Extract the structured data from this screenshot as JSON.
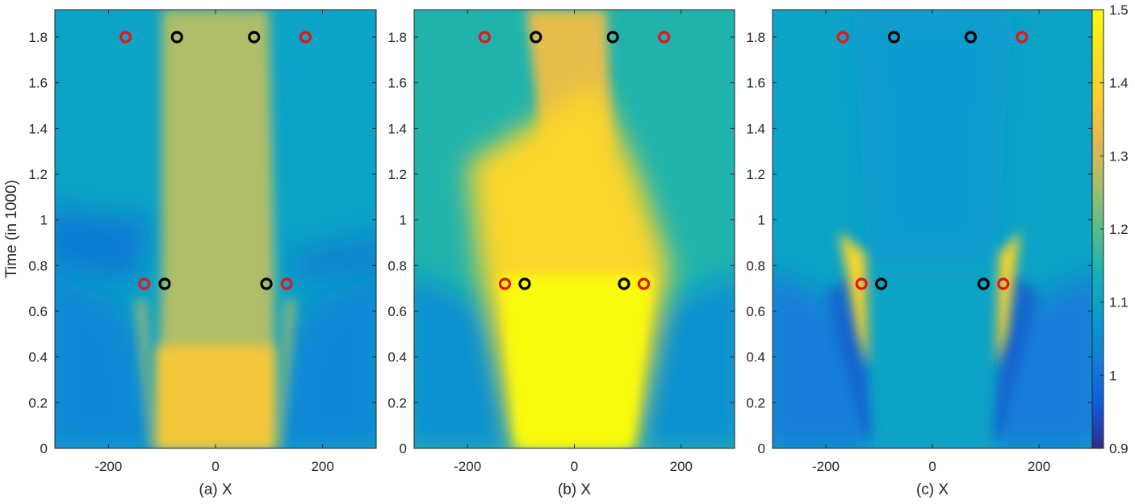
{
  "chart_data": [
    {
      "type": "heatmap",
      "panel": "a",
      "xlabel": "(a) X",
      "ylabel": "Time (in 1000)",
      "xlim": [
        -300,
        300
      ],
      "ylim": [
        0,
        1.92
      ],
      "x_ticks": [
        -200,
        0,
        200
      ],
      "y_ticks": [
        0,
        0.2,
        0.4,
        0.6,
        0.8,
        1,
        1.2,
        1.4,
        1.6,
        1.8
      ],
      "field": {
        "background": 1.1,
        "wave_outer_value": 1.04,
        "wave_left_value": 1.04,
        "band_upper_value": 1.27,
        "band_lower_value": 1.36,
        "streak_value": 1.28,
        "dark_lobe_value": 0.97
      },
      "markers": [
        {
          "x": -168,
          "y": 1.8,
          "color": "red"
        },
        {
          "x": -72,
          "y": 1.8,
          "color": "black"
        },
        {
          "x": 72,
          "y": 1.8,
          "color": "black"
        },
        {
          "x": 168,
          "y": 1.8,
          "color": "red"
        },
        {
          "x": -133,
          "y": 0.72,
          "color": "red"
        },
        {
          "x": -95,
          "y": 0.72,
          "color": "black"
        },
        {
          "x": 95,
          "y": 0.72,
          "color": "black"
        },
        {
          "x": 133,
          "y": 0.72,
          "color": "red"
        }
      ]
    },
    {
      "type": "heatmap",
      "panel": "b",
      "xlabel": "(b) X",
      "ylabel": "",
      "xlim": [
        -300,
        300
      ],
      "ylim": [
        0,
        1.92
      ],
      "x_ticks": [
        -200,
        0,
        200
      ],
      "y_ticks": [
        0,
        0.2,
        0.4,
        0.6,
        0.8,
        1,
        1.2,
        1.4,
        1.6,
        1.8
      ],
      "field": {
        "background": 1.15,
        "wave_outer_value": 1.06,
        "band_upper_value": 1.33,
        "band_lower_value": 1.5,
        "plume_value": 1.4
      },
      "markers": [
        {
          "x": -168,
          "y": 1.8,
          "color": "red"
        },
        {
          "x": -72,
          "y": 1.8,
          "color": "black"
        },
        {
          "x": 72,
          "y": 1.8,
          "color": "black"
        },
        {
          "x": 168,
          "y": 1.8,
          "color": "red"
        },
        {
          "x": -130,
          "y": 0.72,
          "color": "red"
        },
        {
          "x": -93,
          "y": 0.72,
          "color": "black"
        },
        {
          "x": 93,
          "y": 0.72,
          "color": "black"
        },
        {
          "x": 130,
          "y": 0.72,
          "color": "red"
        }
      ]
    },
    {
      "type": "heatmap",
      "panel": "c",
      "xlabel": "(c) X",
      "ylabel": "",
      "xlim": [
        -300,
        300
      ],
      "ylim": [
        0,
        1.92
      ],
      "x_ticks": [
        -200,
        0,
        200
      ],
      "y_ticks": [
        0,
        0.2,
        0.4,
        0.6,
        0.8,
        1,
        1.2,
        1.4,
        1.6,
        1.8
      ],
      "field": {
        "background": 1.1,
        "wave_outer_value": 1.02,
        "core_value": 1.08,
        "core_lower_value": 1.1,
        "streak_value": 1.4,
        "dark_lobe_value": 0.95
      },
      "markers": [
        {
          "x": -168,
          "y": 1.8,
          "color": "red"
        },
        {
          "x": -72,
          "y": 1.8,
          "color": "black"
        },
        {
          "x": 72,
          "y": 1.8,
          "color": "black"
        },
        {
          "x": 168,
          "y": 1.8,
          "color": "red"
        },
        {
          "x": -133,
          "y": 0.72,
          "color": "red"
        },
        {
          "x": -96,
          "y": 0.72,
          "color": "black"
        },
        {
          "x": 96,
          "y": 0.72,
          "color": "black"
        },
        {
          "x": 133,
          "y": 0.72,
          "color": "red"
        }
      ]
    }
  ],
  "colorbar": {
    "colormap": "parula",
    "range": [
      0.9,
      1.5
    ],
    "ticks": [
      0.9,
      1,
      1.1,
      1.2,
      1.3,
      1.4,
      1.5
    ],
    "tick_labels": [
      "0.9",
      "1",
      "1.1",
      "1.2",
      "1.3",
      "1.4",
      "1.5"
    ]
  },
  "colors": {
    "marker_red": "#e8141c",
    "marker_black": "#000000",
    "axis": "#262626"
  }
}
